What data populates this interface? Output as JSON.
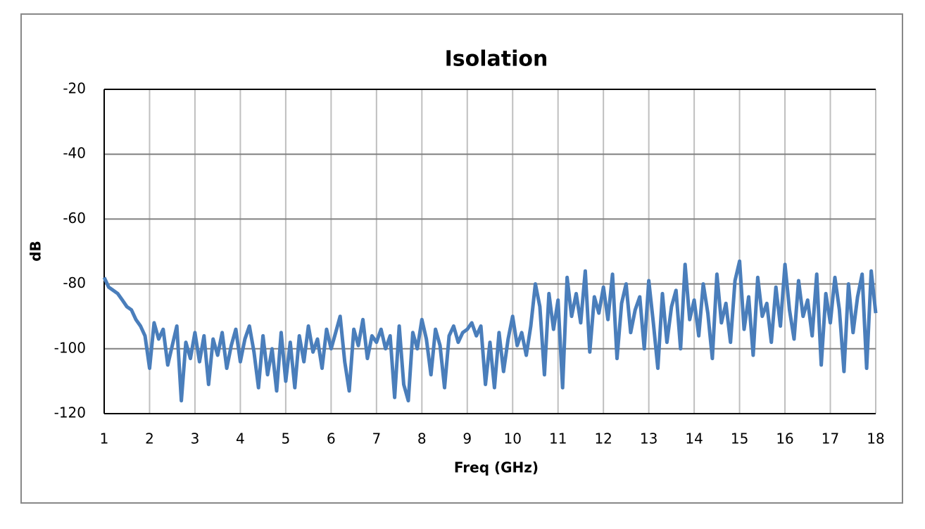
{
  "chart_data": {
    "type": "line",
    "title": "Isolation",
    "x_label": "Freq (GHz)",
    "y_label": "dB",
    "xlim": [
      1,
      18
    ],
    "ylim": [
      -120,
      -20
    ],
    "xticks": [
      1,
      2,
      3,
      4,
      5,
      6,
      7,
      8,
      9,
      10,
      11,
      12,
      13,
      14,
      15,
      16,
      17,
      18
    ],
    "yticks": [
      -120,
      -100,
      -80,
      -60,
      -40,
      -20
    ],
    "grid": true,
    "x": [
      1,
      1.1,
      1.2,
      1.3,
      1.4,
      1.5,
      1.6,
      1.7,
      1.8,
      1.9,
      2,
      2.1,
      2.2,
      2.3,
      2.4,
      2.5,
      2.6,
      2.7,
      2.8,
      2.9,
      3,
      3.1,
      3.2,
      3.3,
      3.4,
      3.5,
      3.6,
      3.7,
      3.8,
      3.9,
      4,
      4.1,
      4.2,
      4.3,
      4.4,
      4.5,
      4.6,
      4.7,
      4.8,
      4.9,
      5,
      5.1,
      5.2,
      5.3,
      5.4,
      5.5,
      5.6,
      5.7,
      5.8,
      5.9,
      6,
      6.1,
      6.2,
      6.3,
      6.4,
      6.5,
      6.6,
      6.7,
      6.8,
      6.9,
      7,
      7.1,
      7.2,
      7.3,
      7.4,
      7.5,
      7.6,
      7.7,
      7.8,
      7.9,
      8,
      8.1,
      8.2,
      8.3,
      8.4,
      8.5,
      8.6,
      8.7,
      8.8,
      8.9,
      9,
      9.1,
      9.2,
      9.3,
      9.4,
      9.5,
      9.6,
      9.7,
      9.8,
      9.9,
      10,
      10.1,
      10.2,
      10.3,
      10.4,
      10.5,
      10.6,
      10.7,
      10.8,
      10.9,
      11,
      11.1,
      11.2,
      11.3,
      11.4,
      11.5,
      11.6,
      11.7,
      11.8,
      11.9,
      12,
      12.1,
      12.2,
      12.3,
      12.4,
      12.5,
      12.6,
      12.7,
      12.8,
      12.9,
      13,
      13.1,
      13.2,
      13.3,
      13.4,
      13.5,
      13.6,
      13.7,
      13.8,
      13.9,
      14,
      14.1,
      14.2,
      14.3,
      14.4,
      14.5,
      14.6,
      14.7,
      14.8,
      14.9,
      15,
      15.1,
      15.2,
      15.3,
      15.4,
      15.5,
      15.6,
      15.7,
      15.8,
      15.9,
      16,
      16.1,
      16.2,
      16.3,
      16.4,
      16.5,
      16.6,
      16.7,
      16.8,
      16.9,
      17,
      17.1,
      17.2,
      17.3,
      17.4,
      17.5,
      17.6,
      17.7,
      17.8,
      17.9,
      18
    ],
    "series": [
      {
        "color": "#4a7ebb",
        "values": [
          -78,
          -81,
          -82,
          -83,
          -85,
          -87,
          -88,
          -91,
          -93,
          -96,
          -106,
          -92,
          -97,
          -94,
          -105,
          -99,
          -93,
          -116,
          -98,
          -103,
          -95,
          -104,
          -96,
          -111,
          -97,
          -102,
          -95,
          -106,
          -99,
          -94,
          -104,
          -97,
          -93,
          -101,
          -112,
          -96,
          -108,
          -100,
          -113,
          -95,
          -110,
          -98,
          -112,
          -96,
          -104,
          -93,
          -101,
          -97,
          -106,
          -94,
          -100,
          -95,
          -90,
          -104,
          -113,
          -94,
          -99,
          -91,
          -103,
          -96,
          -98,
          -94,
          -100,
          -96,
          -115,
          -93,
          -111,
          -116,
          -95,
          -100,
          -91,
          -97,
          -108,
          -94,
          -99,
          -112,
          -96,
          -93,
          -98,
          -95,
          -94,
          -92,
          -96,
          -93,
          -111,
          -98,
          -112,
          -95,
          -107,
          -97,
          -90,
          -99,
          -95,
          -102,
          -93,
          -80,
          -87,
          -108,
          -83,
          -94,
          -85,
          -112,
          -78,
          -90,
          -83,
          -92,
          -76,
          -101,
          -84,
          -89,
          -81,
          -91,
          -77,
          -103,
          -86,
          -80,
          -95,
          -88,
          -84,
          -100,
          -79,
          -92,
          -106,
          -83,
          -98,
          -87,
          -82,
          -100,
          -74,
          -91,
          -85,
          -96,
          -80,
          -89,
          -103,
          -77,
          -92,
          -86,
          -98,
          -79,
          -73,
          -94,
          -84,
          -102,
          -78,
          -90,
          -86,
          -98,
          -81,
          -93,
          -74,
          -88,
          -97,
          -79,
          -90,
          -85,
          -96,
          -77,
          -105,
          -83,
          -92,
          -78,
          -88,
          -107,
          -80,
          -95,
          -84,
          -77,
          -106,
          -76,
          -89
        ]
      }
    ]
  }
}
